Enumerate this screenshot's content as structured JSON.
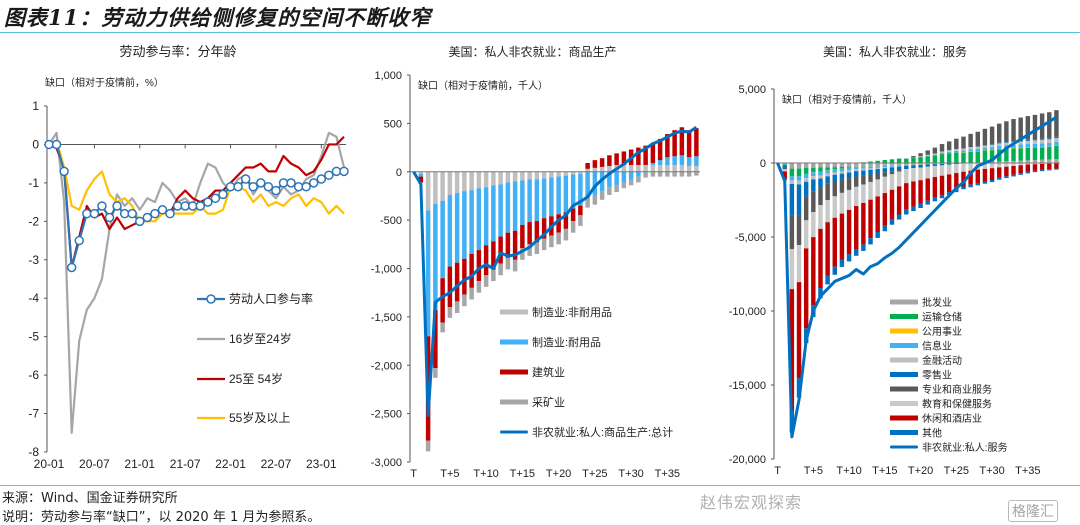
{
  "figure_title": "图表11：劳动力供给侧修复的空间不断收窄",
  "source_note": "来源：Wind、国金证券研究所",
  "explanation_note": "说明：劳动参与率“缺口”，以 2020 年 1 月为参照系。",
  "watermark": "赵伟宏观探索",
  "watermark2": "格隆汇",
  "chart_data": [
    {
      "type": "line",
      "title": "劳动参与率：分年龄",
      "ylabel": "缺口（相对于疫情前，%）",
      "ylim": [
        -8,
        1
      ],
      "yticks": [
        "1",
        "0",
        "-1",
        "-2",
        "-3",
        "-4",
        "-5",
        "-6",
        "-7",
        "-8"
      ],
      "xticks": [
        "20-01",
        "20-07",
        "21-01",
        "21-07",
        "22-01",
        "22-07",
        "23-01"
      ],
      "n_points": 40,
      "legend_position": "center-right",
      "series": [
        {
          "name": "劳动人口参与率",
          "color": "#2e75b6",
          "marker": "circle",
          "values": [
            0,
            0,
            -0.7,
            -3.2,
            -2.5,
            -1.8,
            -1.8,
            -1.6,
            -1.9,
            -1.6,
            -1.8,
            -1.8,
            -2.0,
            -1.9,
            -1.8,
            -1.7,
            -1.8,
            -1.6,
            -1.6,
            -1.6,
            -1.6,
            -1.5,
            -1.4,
            -1.3,
            -1.1,
            -1.1,
            -0.9,
            -1.1,
            -1.0,
            -1.1,
            -1.2,
            -1.0,
            -1.0,
            -1.1,
            -1.1,
            -1.0,
            -0.9,
            -0.8,
            -0.7,
            -0.7
          ]
        },
        {
          "name": "16岁至24岁",
          "color": "#a6a6a6",
          "values": [
            0,
            0.3,
            -1.5,
            -7.5,
            -5.1,
            -4.3,
            -4.0,
            -3.5,
            -2.2,
            -1.3,
            -1.6,
            -1.4,
            -1.7,
            -1.4,
            -1.5,
            -1.0,
            -1.2,
            -1.5,
            -1.4,
            -1.6,
            -1.0,
            -0.5,
            -0.6,
            -1.0,
            -1.2,
            -0.9,
            -0.8,
            -1.3,
            -1.0,
            -1.2,
            -1.4,
            -1.1,
            -1.3,
            -1.2,
            -0.9,
            -0.8,
            -0.3,
            0.3,
            0.2,
            -0.6
          ]
        },
        {
          "name": "25至 54岁",
          "color": "#c00000",
          "values": [
            0,
            -0.1,
            -0.6,
            -3.2,
            -2.4,
            -1.6,
            -1.9,
            -1.8,
            -2.2,
            -1.9,
            -2.2,
            -2.1,
            -2.0,
            -1.9,
            -1.8,
            -1.7,
            -1.8,
            -1.4,
            -1.2,
            -1.4,
            -1.5,
            -1.4,
            -1.2,
            -1.2,
            -1.0,
            -0.8,
            -0.6,
            -0.6,
            -0.5,
            -0.7,
            -0.7,
            -0.3,
            -0.5,
            -0.6,
            -0.8,
            -0.7,
            -0.4,
            0.0,
            0.0,
            0.2
          ]
        },
        {
          "name": "55岁及以上",
          "color": "#ffc000",
          "values": [
            0,
            0.1,
            -0.6,
            -1.6,
            -1.7,
            -1.2,
            -0.9,
            -0.7,
            -1.3,
            -1.5,
            -1.4,
            -1.6,
            -2.0,
            -2.0,
            -2.0,
            -1.8,
            -1.8,
            -1.8,
            -1.8,
            -1.8,
            -1.6,
            -1.8,
            -1.8,
            -1.7,
            -1.1,
            -1.1,
            -1.2,
            -1.5,
            -1.3,
            -1.6,
            -1.5,
            -1.6,
            -1.4,
            -1.3,
            -1.6,
            -1.4,
            -1.5,
            -1.8,
            -1.6,
            -1.8
          ]
        }
      ]
    },
    {
      "type": "bar",
      "stacked": true,
      "title": "美国：私人非农就业：商品生产",
      "ylabel": "缺口（相对于疫情前，千人）",
      "ylim": [
        -3000,
        1000
      ],
      "yticks": [
        "1,000",
        "500",
        "0",
        "-500",
        "-1,000",
        "-1,500",
        "-2,000",
        "-2,500",
        "-3,000"
      ],
      "xticks": [
        "T",
        "T+5",
        "T+10",
        "T+15",
        "T+20",
        "T+25",
        "T+30",
        "T+35"
      ],
      "legend_position": "bottom-right",
      "series": [
        {
          "name": "制造业:非耐用品",
          "color": "#bfbfbf",
          "values": [
            0,
            -20,
            -400,
            -330,
            -300,
            -240,
            -220,
            -200,
            -190,
            -170,
            -160,
            -140,
            -130,
            -110,
            -100,
            -90,
            -80,
            -80,
            -70,
            -60,
            -50,
            -40,
            -30,
            -20,
            30,
            40,
            50,
            60,
            70,
            70,
            70,
            70,
            70,
            70,
            70,
            70,
            70,
            70,
            60,
            60
          ]
        },
        {
          "name": "制造业:耐用品",
          "color": "#41b0f5",
          "values": [
            0,
            -30,
            -1300,
            -1100,
            -800,
            -740,
            -720,
            -700,
            -660,
            -640,
            -600,
            -580,
            -540,
            -520,
            -510,
            -460,
            -440,
            -430,
            -410,
            -400,
            -390,
            -380,
            -350,
            -330,
            -270,
            -240,
            -200,
            -160,
            -140,
            -110,
            -80,
            -50,
            -10,
            20,
            50,
            80,
            90,
            100,
            90,
            100
          ]
        },
        {
          "name": "建筑业",
          "color": "#c00000",
          "values": [
            0,
            -60,
            -1080,
            -600,
            -460,
            -420,
            -400,
            -370,
            -350,
            -320,
            -310,
            -290,
            -280,
            -260,
            -300,
            -240,
            -230,
            -220,
            -210,
            -200,
            -190,
            -170,
            -130,
            -100,
            60,
            80,
            90,
            110,
            120,
            140,
            160,
            180,
            200,
            210,
            220,
            240,
            270,
            290,
            280,
            290
          ]
        },
        {
          "name": "采矿业",
          "color": "#a6a6a6",
          "values": [
            0,
            -10,
            -110,
            -100,
            -100,
            -110,
            -120,
            -120,
            -120,
            -120,
            -120,
            -120,
            -120,
            -120,
            -120,
            -120,
            -120,
            -120,
            -120,
            -120,
            -120,
            -120,
            -120,
            -110,
            -100,
            -100,
            -90,
            -80,
            -70,
            -60,
            -60,
            -60,
            -50,
            -50,
            -50,
            -50,
            -50,
            -50,
            -50,
            -40
          ]
        },
        {
          "name": "非农就业:私人:商品生产:总计",
          "color": "#0070c0",
          "kind": "line",
          "values": [
            0,
            -130,
            -2520,
            -1350,
            -1290,
            -1250,
            -1180,
            -1120,
            -1080,
            -1000,
            -960,
            -1000,
            -840,
            -870,
            -860,
            -820,
            -780,
            -710,
            -650,
            -570,
            -500,
            -450,
            -350,
            -310,
            -260,
            -150,
            -80,
            -20,
            30,
            80,
            140,
            200,
            240,
            290,
            320,
            360,
            400,
            420,
            410,
            460
          ]
        }
      ]
    },
    {
      "type": "bar",
      "stacked": true,
      "title": "美国：私人非农就业：服务",
      "ylabel": "缺口（相对于疫情前，千人）",
      "ylim": [
        -20000,
        5000
      ],
      "yticks": [
        "5,000",
        "0",
        "-5,000",
        "-10,000",
        "-15,000",
        "-20,000"
      ],
      "xticks": [
        "T",
        "T+5",
        "T+10",
        "T+15",
        "T+20",
        "T+25",
        "T+30",
        "T+35"
      ],
      "legend_position": "bottom-right",
      "series": [
        {
          "name": "批发业",
          "color": "#a6a6a6",
          "values": [
            0,
            -60,
            -380,
            -380,
            -340,
            -320,
            -300,
            -290,
            -280,
            -270,
            -260,
            -250,
            -240,
            -230,
            -220,
            -200,
            -190,
            -170,
            -160,
            -140,
            -120,
            -100,
            -80,
            -60,
            -40,
            -20,
            0,
            20,
            40,
            60,
            80,
            100,
            120,
            140,
            160,
            180,
            200,
            220,
            240,
            260
          ]
        },
        {
          "name": "运输仓储",
          "color": "#00b050",
          "values": [
            0,
            -50,
            -500,
            -500,
            -400,
            -300,
            -300,
            -200,
            -150,
            -100,
            -50,
            0,
            50,
            100,
            150,
            200,
            250,
            300,
            300,
            350,
            400,
            450,
            500,
            600,
            650,
            700,
            700,
            750,
            750,
            800,
            800,
            850,
            850,
            850,
            850,
            850,
            850,
            850,
            850,
            900
          ]
        },
        {
          "name": "公用事业",
          "color": "#ffc000",
          "values": [
            0,
            0,
            -10,
            -10,
            -10,
            -10,
            -10,
            -10,
            -10,
            -10,
            -10,
            -10,
            -10,
            -10,
            -10,
            -10,
            -10,
            -10,
            -10,
            -10,
            -10,
            0,
            0,
            0,
            0,
            0,
            10,
            10,
            10,
            10,
            10,
            10,
            20,
            20,
            20,
            20,
            20,
            20,
            20,
            20
          ]
        },
        {
          "name": "信息业",
          "color": "#41b0f5",
          "values": [
            0,
            -20,
            -280,
            -300,
            -280,
            -260,
            -240,
            -220,
            -200,
            -190,
            -180,
            -160,
            -140,
            -120,
            -100,
            -80,
            -60,
            -40,
            -20,
            0,
            20,
            40,
            60,
            80,
            100,
            120,
            140,
            150,
            160,
            170,
            180,
            190,
            200,
            210,
            220,
            230,
            230,
            240,
            240,
            250
          ]
        },
        {
          "name": "金融活动",
          "color": "#bfbfbf",
          "values": [
            0,
            -20,
            -250,
            -260,
            -240,
            -220,
            -200,
            -180,
            -160,
            -150,
            -140,
            -130,
            -120,
            -100,
            -80,
            -60,
            -40,
            -20,
            0,
            20,
            40,
            60,
            80,
            100,
            110,
            120,
            130,
            140,
            150,
            160,
            170,
            180,
            190,
            200,
            210,
            220,
            230,
            240,
            250,
            260
          ]
        },
        {
          "name": "零售业",
          "color": "#0070c0",
          "values": [
            0,
            -150,
            -2100,
            -2100,
            -1000,
            -800,
            -600,
            -500,
            -450,
            -400,
            -380,
            -360,
            -340,
            -320,
            -300,
            -280,
            -260,
            -240,
            -220,
            -200,
            -180,
            -150,
            -120,
            -100,
            -80,
            -60,
            -40,
            -20,
            0,
            10,
            20,
            30,
            40,
            50,
            60,
            70,
            70,
            80,
            80,
            80
          ]
        },
        {
          "name": "专业和商业服务",
          "color": "#595959",
          "values": [
            0,
            -120,
            -2300,
            -2000,
            -1600,
            -1400,
            -1200,
            -1100,
            -1000,
            -900,
            -800,
            -700,
            -600,
            -500,
            -400,
            -300,
            -200,
            -100,
            0,
            100,
            200,
            300,
            400,
            500,
            600,
            700,
            800,
            900,
            1000,
            1100,
            1200,
            1300,
            1400,
            1500,
            1550,
            1600,
            1650,
            1700,
            1750,
            1800
          ]
        },
        {
          "name": "教育和保健服务",
          "color": "#c9c9c9",
          "values": [
            0,
            -150,
            -2700,
            -2500,
            -1900,
            -1700,
            -1600,
            -1500,
            -1450,
            -1400,
            -1350,
            -1300,
            -1250,
            -1200,
            -1150,
            -1100,
            -1050,
            -1000,
            -950,
            -900,
            -850,
            -800,
            -750,
            -700,
            -650,
            -600,
            -550,
            -500,
            -450,
            -400,
            -350,
            -300,
            -250,
            -200,
            -150,
            -100,
            -80,
            -60,
            -40,
            -20
          ]
        },
        {
          "name": "休闲和酒店业",
          "color": "#c00000",
          "values": [
            0,
            -500,
            -8200,
            -6500,
            -5400,
            -4600,
            -4000,
            -3600,
            -3300,
            -3100,
            -3000,
            -2900,
            -2800,
            -2600,
            -2400,
            -2200,
            -2000,
            -1900,
            -1800,
            -1700,
            -1600,
            -1500,
            -1400,
            -1300,
            -1200,
            -1100,
            -1000,
            -950,
            -900,
            -850,
            -800,
            -700,
            -650,
            -600,
            -550,
            -500,
            -450,
            -400,
            -380,
            -350
          ]
        },
        {
          "name": "其他",
          "color": "#0070c0",
          "values": [
            0,
            -100,
            -1500,
            -1300,
            -1000,
            -800,
            -700,
            -600,
            -550,
            -500,
            -480,
            -460,
            -440,
            -420,
            -400,
            -380,
            -360,
            -340,
            -320,
            -300,
            -280,
            -260,
            -240,
            -220,
            -200,
            -190,
            -180,
            -170,
            -160,
            -150,
            -140,
            -130,
            -120,
            -110,
            -100,
            -100,
            -90,
            -90,
            -80,
            -80
          ]
        },
        {
          "name": "非农就业:私人:服务",
          "color": "#0070c0",
          "kind": "line",
          "values": [
            0,
            -1200,
            -18500,
            -16000,
            -12000,
            -10000,
            -9000,
            -8500,
            -8000,
            -7800,
            -7600,
            -7200,
            -7500,
            -7000,
            -6800,
            -6400,
            -6100,
            -5700,
            -5200,
            -4700,
            -4200,
            -3700,
            -3200,
            -2700,
            -2200,
            -1700,
            -1300,
            -700,
            -200,
            0,
            200,
            600,
            1000,
            1300,
            1600,
            1900,
            2200,
            2500,
            2800,
            3100
          ]
        }
      ]
    }
  ]
}
